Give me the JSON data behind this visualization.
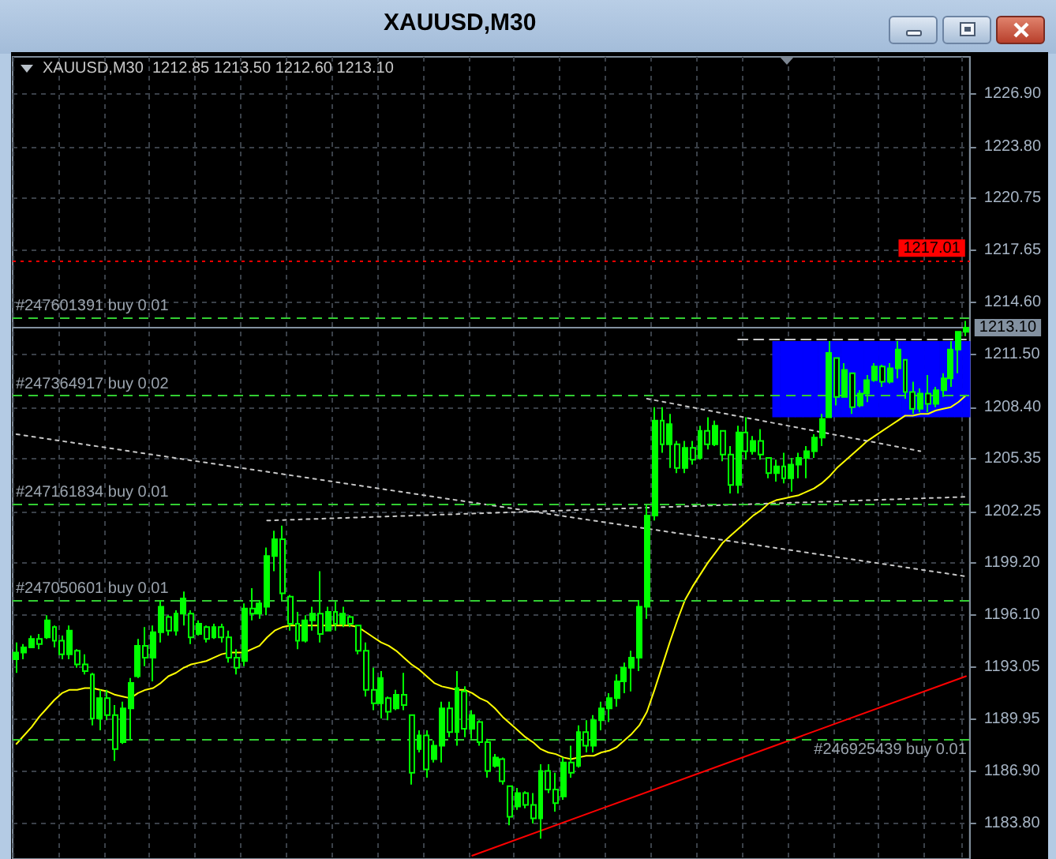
{
  "chart_data": {
    "type": "candlestick",
    "title": "XAUUSD,M30",
    "subtitle": "XAUUSD,M30  1212.85 1213.50 1212.60 1213.10",
    "categories": [
      null,
      null,
      null,
      null,
      null,
      null,
      null,
      null,
      null,
      null,
      null,
      null,
      null,
      null,
      null,
      null,
      null,
      null,
      null,
      null,
      null,
      null,
      null,
      null,
      null,
      null,
      null,
      null,
      null,
      null,
      null,
      null,
      null,
      null,
      null,
      null,
      null,
      null,
      null,
      null,
      null,
      null,
      null,
      null,
      null,
      null,
      null,
      null,
      null,
      null,
      null,
      null,
      null,
      null,
      null,
      null,
      null,
      null,
      null,
      null,
      null,
      null,
      null,
      null,
      null,
      null,
      null,
      null,
      null,
      null,
      null,
      null,
      null,
      null,
      null,
      null,
      null,
      null,
      null,
      null,
      null,
      null,
      null,
      null,
      null,
      null,
      null,
      null,
      null,
      null,
      null,
      null,
      null,
      null,
      null,
      null,
      null,
      null,
      null,
      null,
      null,
      null,
      null,
      null,
      null,
      null,
      null,
      null,
      null,
      null,
      null,
      null,
      null,
      null,
      null,
      null,
      null,
      null,
      null,
      null,
      null,
      null,
      null,
      null,
      null,
      null
    ],
    "ylim": [
      1181.7,
      1229.1
    ],
    "yticks": [
      {
        "value": 1183.8,
        "label": "1183.80"
      },
      {
        "value": 1186.9,
        "label": "1186.90"
      },
      1189.95,
      1193.05,
      {
        "value": 1196.1,
        "label": "1196.10"
      },
      {
        "value": 1199.2,
        "label": "1199.20"
      },
      1202.25,
      1205.35,
      {
        "value": 1208.4,
        "label": "1208.40"
      },
      {
        "value": 1211.5,
        "label": "1211.50"
      },
      {
        "value": 1214.6,
        "label": "1214.60"
      },
      1217.65,
      1220.75,
      {
        "value": 1223.8,
        "label": "1223.80"
      },
      {
        "value": 1226.9,
        "label": "1226.90"
      }
    ],
    "grid": true,
    "tick_labels": "y",
    "ref_lines": [
      {
        "axis": "y",
        "value": 1217.01,
        "label": "1217.01",
        "color": "#ff0000",
        "line_style": "dotted"
      },
      {
        "axis": "y",
        "value": 1213.1,
        "label": "1213.10",
        "color": "#8391a0",
        "line_style": "solid"
      },
      {
        "axis": "y",
        "value": 1213.7,
        "label": "#247601391 buy 0.01",
        "color": "#32cd32",
        "line_style": "dashed"
      },
      {
        "axis": "y",
        "value": 1209.1,
        "label": "#247364917 buy 0.02",
        "color": "#32cd32",
        "line_style": "dashed"
      },
      {
        "axis": "y",
        "value": 1202.7,
        "label": "#247161834 buy 0.01",
        "color": "#32cd32",
        "line_style": "dashed"
      },
      {
        "axis": "y",
        "value": 1197.0,
        "label": "#247050601 buy 0.01",
        "color": "#32cd32",
        "line_style": "dashed"
      },
      {
        "axis": "y",
        "value": 1188.8,
        "label": "#246925439 buy 0.01",
        "color": "#32cd32",
        "line_style": "dashed"
      }
    ],
    "series": [
      {
        "type": "bar",
        "color": "#0000ff",
        "base": [
          null,
          null,
          null,
          null,
          null,
          null,
          null,
          null,
          null,
          null,
          null,
          null,
          null,
          null,
          null,
          null,
          null,
          null,
          null,
          null,
          null,
          null,
          null,
          null,
          null,
          null,
          null,
          null,
          null,
          null,
          null,
          null,
          null,
          null,
          null,
          null,
          null,
          null,
          null,
          null,
          null,
          null,
          null,
          null,
          null,
          null,
          null,
          null,
          null,
          null,
          null,
          null,
          null,
          null,
          null,
          null,
          null,
          null,
          null,
          null,
          null,
          null,
          null,
          null,
          null,
          null,
          null,
          null,
          null,
          null,
          null,
          null,
          null,
          null,
          null,
          null,
          null,
          null,
          null,
          null,
          null,
          null,
          null,
          null,
          null,
          null,
          null,
          null,
          null,
          null,
          null,
          null,
          null,
          null,
          null,
          null,
          null,
          null,
          null,
          null,
          1207.8,
          1207.8,
          1207.8,
          1207.8,
          1207.8,
          1207.8,
          1207.8,
          1207.8,
          1207.8,
          1207.8,
          1207.8,
          1207.8,
          1207.8,
          1207.8,
          1207.8,
          1207.8,
          1207.8,
          1207.8,
          1207.8,
          1207.8,
          1207.8,
          1207.8,
          1207.8,
          1207.8,
          1207.8,
          1207.8
        ],
        "values": [
          null,
          null,
          null,
          null,
          null,
          null,
          null,
          null,
          null,
          null,
          null,
          null,
          null,
          null,
          null,
          null,
          null,
          null,
          null,
          null,
          null,
          null,
          null,
          null,
          null,
          null,
          null,
          null,
          null,
          null,
          null,
          null,
          null,
          null,
          null,
          null,
          null,
          null,
          null,
          null,
          null,
          null,
          null,
          null,
          null,
          null,
          null,
          null,
          null,
          null,
          null,
          null,
          null,
          null,
          null,
          null,
          null,
          null,
          null,
          null,
          null,
          null,
          null,
          null,
          null,
          null,
          null,
          null,
          null,
          null,
          null,
          null,
          null,
          null,
          null,
          null,
          null,
          null,
          null,
          null,
          null,
          null,
          null,
          null,
          null,
          null,
          null,
          null,
          null,
          null,
          null,
          null,
          null,
          null,
          null,
          null,
          null,
          null,
          null,
          null,
          4.5,
          4.5,
          4.5,
          4.5,
          4.5,
          4.5,
          4.5,
          4.5,
          4.5,
          4.5,
          4.5,
          4.5,
          4.5,
          4.5,
          4.5,
          4.5,
          4.5,
          4.5,
          4.5,
          4.5,
          4.5,
          4.5,
          4.5,
          4.5,
          4.5,
          4.5
        ]
      },
      {
        "color": "#00ff00",
        "ohlc": [
          [
            1193.5,
            1194.5,
            1192.7,
            1193.9
          ],
          [
            1193.9,
            1194.4,
            1193.5,
            1194.2
          ],
          [
            1194.2,
            1194.9,
            1194.2,
            1194.7
          ],
          [
            1194.7,
            1195.0,
            1194.1,
            1194.4
          ],
          [
            1194.8,
            1196.1,
            1194.7,
            1195.8
          ],
          [
            1195.4,
            1195.5,
            1194.2,
            1194.6
          ],
          [
            1194.6,
            1194.9,
            1193.5,
            1193.8
          ],
          [
            1193.8,
            1195.5,
            1193.5,
            1195.2
          ],
          [
            1194.0,
            1194.1,
            1193.0,
            1193.2
          ],
          [
            1193.2,
            1193.8,
            1192.6,
            1192.8
          ],
          [
            1192.6,
            1192.7,
            1189.6,
            1190.0
          ],
          [
            1190.0,
            1191.7,
            1189.3,
            1191.2
          ],
          [
            1191.2,
            1191.7,
            1189.9,
            1190.2
          ],
          [
            1190.2,
            1190.8,
            1187.5,
            1188.2
          ],
          [
            1188.6,
            1191.0,
            1188.5,
            1190.6
          ],
          [
            1190.6,
            1192.4,
            1188.7,
            1192.1
          ],
          [
            1192.5,
            1194.7,
            1192.4,
            1194.3
          ],
          [
            1194.3,
            1195.4,
            1193.1,
            1193.6
          ],
          [
            1193.6,
            1195.5,
            1192.2,
            1195.1
          ],
          [
            1195.1,
            1197.0,
            1194.5,
            1196.6
          ],
          [
            1196.0,
            1196.1,
            1194.9,
            1195.2
          ],
          [
            1195.2,
            1196.4,
            1194.9,
            1196.2
          ],
          [
            1196.2,
            1197.5,
            1195.5,
            1197.1
          ],
          [
            1196.2,
            1196.4,
            1194.4,
            1194.8
          ],
          [
            1195.0,
            1195.8,
            1194.9,
            1195.6
          ],
          [
            1195.4,
            1195.5,
            1194.5,
            1194.7
          ],
          [
            1194.8,
            1195.6,
            1194.7,
            1195.4
          ],
          [
            1195.4,
            1195.6,
            1194.5,
            1194.8
          ],
          [
            1194.8,
            1195.2,
            1193.3,
            1193.6
          ],
          [
            1193.6,
            1194.1,
            1192.6,
            1193.0
          ],
          [
            1193.4,
            1196.8,
            1193.1,
            1196.5
          ],
          [
            1196.5,
            1197.7,
            1195.8,
            1196.2
          ],
          [
            1196.2,
            1197.0,
            1195.9,
            1196.8
          ],
          [
            1196.6,
            1200.1,
            1196.1,
            1199.6
          ],
          [
            1199.6,
            1201.1,
            1198.7,
            1200.6
          ],
          [
            1200.6,
            1201.4,
            1197.0,
            1197.4
          ],
          [
            1197.2,
            1197.3,
            1195.2,
            1195.6
          ],
          [
            1195.6,
            1196.3,
            1194.1,
            1194.6
          ],
          [
            1194.6,
            1196.1,
            1194.5,
            1195.8
          ],
          [
            1195.8,
            1196.6,
            1195.2,
            1196.2
          ],
          [
            1196.2,
            1198.7,
            1194.5,
            1195.0
          ],
          [
            1195.2,
            1196.6,
            1195.2,
            1196.3
          ],
          [
            1196.3,
            1196.9,
            1195.2,
            1195.6
          ],
          [
            1195.6,
            1196.6,
            1195.4,
            1196.2
          ],
          [
            1196.0,
            1196.1,
            1195.4,
            1195.6
          ],
          [
            1195.5,
            1195.5,
            1193.8,
            1194.0
          ],
          [
            1194.0,
            1194.5,
            1191.3,
            1191.7
          ],
          [
            1191.7,
            1193.0,
            1190.5,
            1190.9
          ],
          [
            1190.9,
            1192.8,
            1190.0,
            1192.4
          ],
          [
            1191.2,
            1191.3,
            1189.9,
            1190.4
          ],
          [
            1190.6,
            1191.7,
            1190.5,
            1191.4
          ],
          [
            1191.4,
            1192.7,
            1190.5,
            1190.8
          ],
          [
            1190.2,
            1190.2,
            1186.1,
            1186.8
          ],
          [
            1188.2,
            1189.3,
            1188.0,
            1189.0
          ],
          [
            1189.0,
            1189.3,
            1186.5,
            1187.0
          ],
          [
            1187.6,
            1188.7,
            1187.4,
            1188.4
          ],
          [
            1188.4,
            1191.0,
            1187.4,
            1190.6
          ],
          [
            1190.6,
            1191.0,
            1188.9,
            1189.2
          ],
          [
            1189.2,
            1192.8,
            1188.4,
            1191.8
          ],
          [
            1191.6,
            1191.9,
            1188.9,
            1189.4
          ],
          [
            1189.4,
            1190.5,
            1188.8,
            1190.2
          ],
          [
            1189.8,
            1189.9,
            1188.4,
            1188.6
          ],
          [
            1188.6,
            1188.8,
            1186.5,
            1186.9
          ],
          [
            1187.2,
            1187.9,
            1187.1,
            1187.7
          ],
          [
            1187.6,
            1187.7,
            1186.1,
            1186.3
          ],
          [
            1186.0,
            1186.0,
            1183.7,
            1184.2
          ],
          [
            1184.8,
            1185.9,
            1184.6,
            1185.6
          ],
          [
            1185.6,
            1185.7,
            1184.7,
            1184.9
          ],
          [
            1184.9,
            1185.6,
            1183.8,
            1184.1
          ],
          [
            1184.1,
            1187.3,
            1182.9,
            1186.9
          ],
          [
            1186.9,
            1187.3,
            1185.6,
            1185.8
          ],
          [
            1185.8,
            1186.8,
            1184.5,
            1185.0
          ],
          [
            1185.4,
            1187.7,
            1185.2,
            1187.4
          ],
          [
            1187.4,
            1188.4,
            1186.5,
            1186.8
          ],
          [
            1187.2,
            1189.6,
            1187.1,
            1189.2
          ],
          [
            1189.2,
            1189.9,
            1188.0,
            1188.4
          ],
          [
            1188.4,
            1190.2,
            1188.0,
            1189.9
          ],
          [
            1189.9,
            1191.0,
            1189.3,
            1190.6
          ],
          [
            1190.6,
            1191.5,
            1189.8,
            1191.2
          ],
          [
            1191.2,
            1192.6,
            1190.7,
            1192.2
          ],
          [
            1192.2,
            1193.3,
            1191.5,
            1193.0
          ],
          [
            1193.0,
            1194.0,
            1191.6,
            1193.6
          ],
          [
            1193.6,
            1197.0,
            1192.8,
            1196.6
          ],
          [
            1196.6,
            1202.6,
            1195.9,
            1202.0
          ],
          [
            1202.0,
            1208.4,
            1201.7,
            1207.6
          ],
          [
            1207.6,
            1208.4,
            1205.7,
            1206.2
          ],
          [
            1206.2,
            1208.0,
            1204.8,
            1207.4
          ],
          [
            1206.2,
            1206.4,
            1204.5,
            1204.8
          ],
          [
            1204.8,
            1206.4,
            1204.5,
            1206.0
          ],
          [
            1206.0,
            1206.4,
            1205.0,
            1205.3
          ],
          [
            1205.4,
            1207.3,
            1205.3,
            1207.0
          ],
          [
            1207.0,
            1207.8,
            1205.9,
            1206.2
          ],
          [
            1206.2,
            1207.6,
            1206.1,
            1207.3
          ],
          [
            1207.0,
            1207.0,
            1205.2,
            1205.6
          ],
          [
            1205.6,
            1206.1,
            1203.3,
            1203.8
          ],
          [
            1203.8,
            1207.3,
            1203.3,
            1206.9
          ],
          [
            1206.9,
            1207.8,
            1205.3,
            1205.8
          ],
          [
            1205.8,
            1206.7,
            1205.6,
            1206.4
          ],
          [
            1206.4,
            1207.1,
            1205.3,
            1205.6
          ],
          [
            1205.4,
            1205.4,
            1204.2,
            1204.5
          ],
          [
            1204.5,
            1205.3,
            1204.0,
            1204.9
          ],
          [
            1204.9,
            1205.7,
            1203.9,
            1204.2
          ],
          [
            1204.2,
            1205.4,
            1203.4,
            1205.0
          ],
          [
            1205.0,
            1205.7,
            1204.2,
            1205.4
          ],
          [
            1205.4,
            1206.1,
            1204.2,
            1205.8
          ],
          [
            1205.8,
            1206.8,
            1205.4,
            1206.6
          ],
          [
            1206.6,
            1208.0,
            1206.1,
            1207.7
          ],
          [
            1207.8,
            1212.3,
            1207.8,
            1211.6
          ],
          [
            1211.3,
            1211.3,
            1208.5,
            1209.0
          ],
          [
            1209.0,
            1211.0,
            1209.0,
            1210.6
          ],
          [
            1210.4,
            1210.4,
            1208.0,
            1208.4
          ],
          [
            1208.5,
            1209.4,
            1208.4,
            1209.2
          ],
          [
            1209.2,
            1210.3,
            1208.7,
            1210.0
          ],
          [
            1210.0,
            1211.0,
            1209.9,
            1210.8
          ],
          [
            1210.8,
            1210.9,
            1209.6,
            1209.9
          ],
          [
            1209.9,
            1211.0,
            1209.8,
            1210.7
          ],
          [
            1210.7,
            1212.3,
            1210.1,
            1211.8
          ],
          [
            1211.2,
            1211.2,
            1208.9,
            1209.3
          ],
          [
            1209.3,
            1209.9,
            1208.0,
            1208.3
          ],
          [
            1208.3,
            1209.5,
            1208.1,
            1209.2
          ],
          [
            1209.2,
            1210.3,
            1208.1,
            1208.6
          ],
          [
            1208.6,
            1209.6,
            1208.4,
            1209.4
          ],
          [
            1209.4,
            1210.4,
            1209.0,
            1210.1
          ],
          [
            1210.1,
            1212.3,
            1209.6,
            1211.8
          ],
          [
            1211.8,
            1212.9,
            1210.4,
            1212.85
          ],
          [
            1212.85,
            1213.5,
            1212.6,
            1213.1
          ]
        ]
      },
      {
        "type": "line",
        "color": "#ffff00",
        "values": [
          1188.5,
          1189.0,
          1189.5,
          1190.1,
          1190.6,
          1191.1,
          1191.5,
          1191.7,
          1191.7,
          1191.8,
          1191.8,
          1191.7,
          1191.6,
          1191.4,
          1191.3,
          1191.2,
          1191.5,
          1191.7,
          1191.8,
          1192.1,
          1192.5,
          1192.7,
          1193.0,
          1193.2,
          1193.3,
          1193.4,
          1193.6,
          1193.8,
          1193.9,
          1193.9,
          1193.9,
          1194.1,
          1194.3,
          1194.8,
          1195.2,
          1195.4,
          1195.5,
          1195.5,
          1195.5,
          1195.5,
          1195.5,
          1195.5,
          1195.5,
          1195.5,
          1195.5,
          1195.4,
          1195.1,
          1194.8,
          1194.5,
          1194.3,
          1194.0,
          1193.6,
          1193.2,
          1192.9,
          1192.5,
          1192.1,
          1191.9,
          1191.8,
          1191.7,
          1191.7,
          1191.5,
          1191.2,
          1191.0,
          1190.6,
          1190.1,
          1189.7,
          1189.3,
          1188.9,
          1188.6,
          1188.2,
          1188.0,
          1187.9,
          1187.7,
          1187.6,
          1187.7,
          1187.8,
          1187.8,
          1188.0,
          1188.1,
          1188.3,
          1188.7,
          1189.1,
          1189.6,
          1190.4,
          1191.7,
          1193.1,
          1194.5,
          1195.8,
          1197.0,
          1197.8,
          1198.5,
          1199.2,
          1199.8,
          1200.4,
          1200.8,
          1201.2,
          1201.6,
          1202.0,
          1202.3,
          1202.7,
          1202.9,
          1203.0,
          1203.1,
          1203.2,
          1203.4,
          1203.6,
          1203.9,
          1204.3,
          1204.8,
          1205.2,
          1205.6,
          1206.0,
          1206.4,
          1206.7,
          1207.0,
          1207.3,
          1207.6,
          1207.9,
          1207.9,
          1208.0,
          1208.0,
          1208.2,
          1208.3,
          1208.4,
          1208.7,
          1209.1
        ]
      },
      {
        "type": "line",
        "color": "#ff0000",
        "values": [
          null,
          null,
          null,
          null,
          null,
          null,
          null,
          null,
          null,
          null,
          null,
          null,
          null,
          null,
          null,
          null,
          null,
          null,
          null,
          null,
          null,
          null,
          null,
          null,
          null,
          null,
          null,
          null,
          null,
          null,
          null,
          null,
          null,
          null,
          null,
          null,
          null,
          null,
          null,
          null,
          null,
          null,
          null,
          null,
          null,
          null,
          null,
          null,
          null,
          null,
          null,
          null,
          null,
          null,
          null,
          null,
          null,
          null,
          null,
          null,
          1181.9,
          null,
          null,
          null,
          null,
          null,
          null,
          null,
          null,
          null,
          null,
          null,
          null,
          null,
          null,
          null,
          null,
          null,
          null,
          null,
          null,
          null,
          null,
          null,
          null,
          null,
          null,
          null,
          null,
          null,
          null,
          null,
          null,
          null,
          null,
          null,
          null,
          null,
          null,
          null,
          null,
          null,
          null,
          null,
          null,
          null,
          null,
          null,
          null,
          null,
          null,
          null,
          null,
          null,
          null,
          null,
          null,
          null,
          null,
          null,
          null,
          null,
          null,
          null,
          null,
          1192.5
        ]
      },
      {
        "type": "line",
        "color": "#c8c8c8",
        "line_style": "dotted",
        "values": [
          1206.8,
          null,
          null,
          null,
          null,
          null,
          null,
          null,
          null,
          null,
          null,
          null,
          null,
          null,
          null,
          null,
          null,
          null,
          null,
          null,
          null,
          null,
          null,
          null,
          null,
          null,
          null,
          null,
          null,
          null,
          null,
          null,
          null,
          null,
          null,
          null,
          null,
          null,
          null,
          null,
          null,
          null,
          null,
          null,
          null,
          null,
          null,
          null,
          null,
          null,
          null,
          null,
          null,
          null,
          null,
          null,
          null,
          null,
          null,
          null,
          null,
          null,
          null,
          null,
          null,
          null,
          null,
          null,
          null,
          null,
          null,
          null,
          null,
          null,
          null,
          null,
          null,
          null,
          null,
          null,
          null,
          null,
          null,
          null,
          null,
          null,
          null,
          null,
          null,
          null,
          null,
          null,
          null,
          null,
          null,
          null,
          null,
          null,
          null,
          null,
          null,
          null,
          null,
          null,
          null,
          null,
          null,
          null,
          null,
          null,
          null,
          null,
          null,
          null,
          null,
          null,
          null,
          null,
          null,
          null,
          null,
          null,
          null,
          null,
          null,
          1198.4
        ]
      },
      {
        "type": "line",
        "color": "#c8c8c8",
        "line_style": "dotted",
        "values": [
          null,
          null,
          null,
          null,
          null,
          null,
          null,
          null,
          null,
          null,
          null,
          null,
          null,
          null,
          null,
          null,
          null,
          null,
          null,
          null,
          null,
          null,
          null,
          null,
          null,
          null,
          null,
          null,
          null,
          null,
          null,
          null,
          null,
          1201.7,
          null,
          null,
          null,
          null,
          null,
          null,
          null,
          null,
          null,
          null,
          null,
          null,
          null,
          null,
          null,
          null,
          null,
          null,
          null,
          null,
          null,
          null,
          null,
          null,
          null,
          null,
          null,
          null,
          null,
          null,
          null,
          null,
          null,
          null,
          null,
          null,
          null,
          null,
          null,
          null,
          null,
          null,
          null,
          null,
          null,
          null,
          null,
          null,
          null,
          null,
          null,
          null,
          null,
          null,
          null,
          null,
          null,
          null,
          null,
          null,
          null,
          null,
          null,
          null,
          null,
          null,
          null,
          null,
          null,
          null,
          null,
          null,
          null,
          null,
          null,
          null,
          null,
          null,
          null,
          null,
          null,
          null,
          null,
          null,
          null,
          null,
          null,
          null,
          null,
          null,
          null,
          1203.1
        ]
      },
      {
        "type": "line",
        "color": "#c8c8c8",
        "line_style": "dotted",
        "values": [
          null,
          null,
          null,
          null,
          null,
          null,
          null,
          null,
          null,
          null,
          null,
          null,
          null,
          null,
          null,
          null,
          null,
          null,
          null,
          null,
          null,
          null,
          null,
          null,
          null,
          null,
          null,
          null,
          null,
          null,
          null,
          null,
          null,
          null,
          null,
          null,
          null,
          null,
          null,
          null,
          null,
          null,
          null,
          null,
          null,
          null,
          null,
          null,
          null,
          null,
          null,
          null,
          null,
          null,
          null,
          null,
          null,
          null,
          null,
          null,
          null,
          null,
          null,
          null,
          null,
          null,
          null,
          null,
          null,
          null,
          null,
          null,
          null,
          null,
          null,
          null,
          null,
          null,
          null,
          null,
          null,
          null,
          null,
          1208.9,
          null,
          null,
          null,
          null,
          null,
          null,
          null,
          null,
          null,
          null,
          null,
          null,
          null,
          null,
          null,
          null,
          null,
          null,
          null,
          null,
          null,
          null,
          null,
          null,
          null,
          null,
          null,
          null,
          null,
          null,
          null,
          null,
          null,
          null,
          null,
          1205.8,
          null,
          null,
          null,
          null,
          null,
          null
        ]
      },
      {
        "type": "line",
        "color": "#c8c8c8",
        "line_style": "dashed",
        "values": [
          null,
          null,
          null,
          null,
          null,
          null,
          null,
          null,
          null,
          null,
          null,
          null,
          null,
          null,
          null,
          null,
          null,
          null,
          null,
          null,
          null,
          null,
          null,
          null,
          null,
          null,
          null,
          null,
          null,
          null,
          null,
          null,
          null,
          null,
          null,
          null,
          null,
          null,
          null,
          null,
          null,
          null,
          null,
          null,
          null,
          null,
          null,
          null,
          null,
          null,
          null,
          null,
          null,
          null,
          null,
          null,
          null,
          null,
          null,
          null,
          null,
          null,
          null,
          null,
          null,
          null,
          null,
          null,
          null,
          null,
          null,
          null,
          null,
          null,
          null,
          null,
          null,
          null,
          null,
          null,
          null,
          null,
          null,
          null,
          null,
          null,
          null,
          null,
          null,
          null,
          null,
          null,
          null,
          null,
          null,
          1212.4,
          null,
          null,
          null,
          null,
          null,
          null,
          null,
          null,
          null,
          null,
          null,
          null,
          null,
          null,
          null,
          null,
          null,
          null,
          null,
          null,
          null,
          null,
          null,
          null,
          null,
          null,
          null,
          null,
          null,
          1212.4
        ]
      }
    ]
  }
}
